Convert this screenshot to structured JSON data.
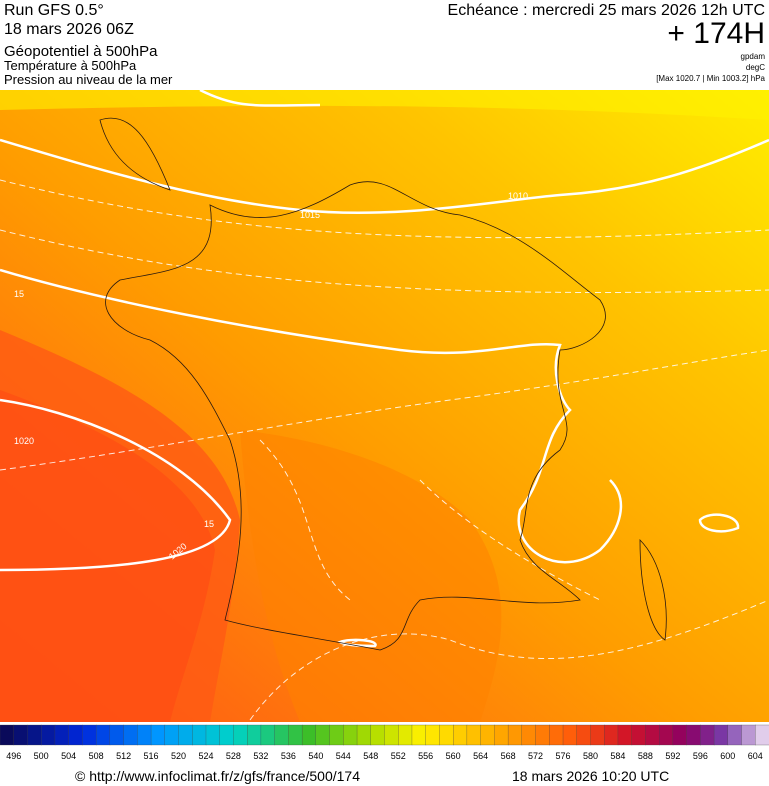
{
  "header": {
    "run": "Run GFS 0.5°",
    "run_date": "18 mars 2026 06Z",
    "field1": "Géopotentiel à 500hPa",
    "field2": "Température à 500hPa",
    "field3": "Pression au niveau de la mer",
    "echeance": "Echéance : mercredi 25 mars 2026 12h UTC",
    "lead": "+ 174H",
    "unit1": "gpdam",
    "unit2": "degC",
    "pressure_range": "[Max 1020.7 | Min 1003.2] hPa"
  },
  "map": {
    "contour_labels": [
      "1015",
      "1010",
      "1020",
      "1020",
      "15",
      "15"
    ]
  },
  "colorbar": {
    "labels": [
      "496",
      "500",
      "504",
      "508",
      "512",
      "516",
      "520",
      "524",
      "528",
      "532",
      "536",
      "540",
      "544",
      "548",
      "552",
      "556",
      "560",
      "564",
      "568",
      "572",
      "576",
      "580",
      "584",
      "588",
      "592",
      "596",
      "600",
      "604"
    ]
  },
  "footer": {
    "url": "© http://www.infoclimat.fr/z/gfs/france/500/174",
    "date": "18 mars 2026 10:20 UTC"
  }
}
